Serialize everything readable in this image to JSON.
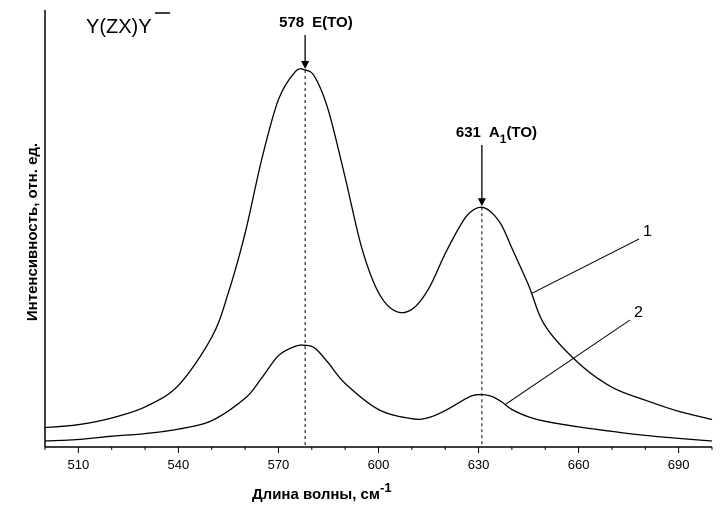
{
  "chart_data": {
    "type": "line",
    "corner_label": "Y(ZX)Y",
    "xlabel": "Длина волны, см",
    "xlabel_exp": "-1",
    "ylabel": "Интенсивность, отн. ед.",
    "xlim": [
      500,
      700
    ],
    "ylim": [
      0,
      100
    ],
    "x_ticks": [
      510,
      540,
      570,
      600,
      630,
      660,
      690
    ],
    "yticks_shown": false,
    "grid": false,
    "annotations": [
      {
        "x": 578,
        "num": "578",
        "text": "E(TO)",
        "sub": ""
      },
      {
        "x": 631,
        "num": "631",
        "text": "A",
        "sub": "1",
        "text2": "(TO)"
      }
    ],
    "series": [
      {
        "name": "1",
        "x": [
          500,
          510,
          520,
          530,
          540,
          550,
          555,
          560,
          565,
          570,
          575,
          578,
          581,
          585,
          590,
          595,
          600,
          605,
          610,
          615,
          620,
          625,
          628,
          631,
          634,
          637,
          640,
          645,
          650,
          660,
          670,
          680,
          690,
          700
        ],
        "y": [
          3.6,
          4.4,
          6.2,
          9.2,
          15.0,
          28.0,
          40.0,
          56.0,
          76.0,
          92.0,
          99.5,
          100.0,
          98.0,
          89.0,
          71.0,
          52.0,
          40.0,
          35.0,
          35.5,
          41.0,
          50.5,
          58.8,
          62.0,
          63.0,
          61.5,
          58.0,
          52.0,
          42.0,
          31.0,
          21.0,
          14.5,
          11.0,
          8.0,
          5.8
        ]
      },
      {
        "name": "2",
        "x": [
          500,
          510,
          520,
          530,
          540,
          550,
          560,
          565,
          570,
          575,
          578,
          581,
          585,
          590,
          600,
          610,
          615,
          620,
          625,
          628,
          631,
          634,
          637,
          640,
          645,
          650,
          660,
          670,
          680,
          690,
          700
        ],
        "y": [
          0.0,
          0.4,
          1.3,
          2.0,
          3.2,
          5.5,
          11.5,
          17.0,
          23.0,
          25.5,
          25.8,
          25.0,
          21.0,
          15.5,
          8.5,
          6.0,
          6.3,
          8.2,
          10.8,
          12.2,
          12.5,
          12.0,
          10.5,
          8.5,
          6.5,
          5.3,
          3.8,
          2.6,
          1.5,
          0.7,
          0.0
        ]
      }
    ]
  }
}
